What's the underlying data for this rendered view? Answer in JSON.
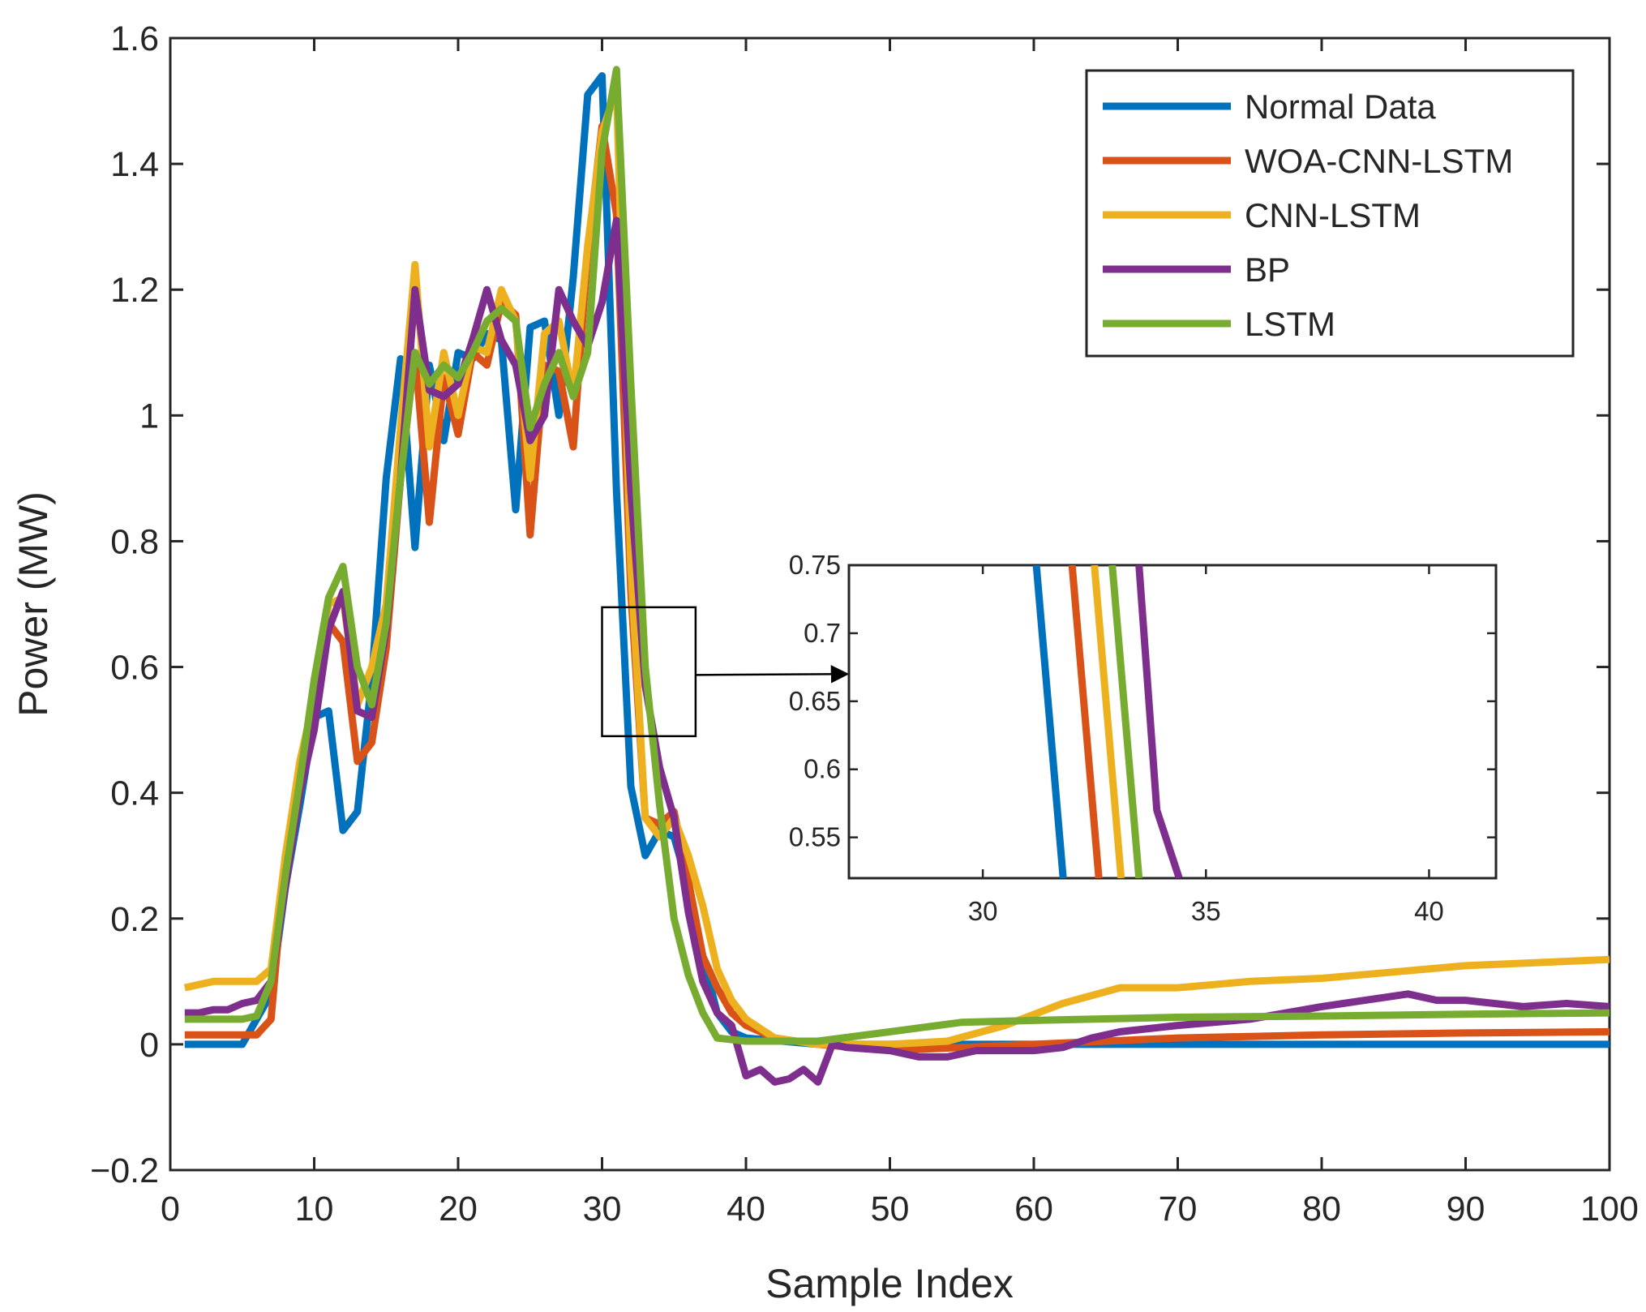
{
  "chart_data": {
    "type": "line",
    "title": "",
    "xlabel": "Sample Index",
    "ylabel": "Power (MW)",
    "xlim": [
      0,
      100
    ],
    "ylim": [
      -0.2,
      1.6
    ],
    "xticks": [
      0,
      10,
      20,
      30,
      40,
      50,
      60,
      70,
      80,
      90,
      100
    ],
    "yticks": [
      -0.2,
      0,
      0.2,
      0.4,
      0.6,
      0.8,
      1,
      1.2,
      1.4,
      1.6
    ],
    "xtick_labels": [
      "0",
      "10",
      "20",
      "30",
      "40",
      "50",
      "60",
      "70",
      "80",
      "90",
      "100"
    ],
    "ytick_labels": [
      "−0.2",
      "0",
      "0.2",
      "0.4",
      "0.6",
      "0.8",
      "1",
      "1.2",
      "1.4",
      "1.6"
    ],
    "grid": false,
    "legend_position": "top-right",
    "series": [
      {
        "name": "Normal Data",
        "color": "#0072BD",
        "x": [
          1,
          2,
          3,
          4,
          5,
          6,
          7,
          8,
          9,
          10,
          11,
          12,
          13,
          14,
          15,
          16,
          17,
          18,
          19,
          20,
          21,
          22,
          23,
          24,
          25,
          26,
          27,
          28,
          29,
          30,
          31,
          32,
          33,
          34,
          35,
          36,
          37,
          38,
          39,
          40,
          45,
          50,
          55,
          60,
          70,
          80,
          90,
          100
        ],
        "y": [
          0,
          0,
          0,
          0,
          0,
          0.04,
          0.08,
          0.25,
          0.38,
          0.52,
          0.53,
          0.34,
          0.37,
          0.58,
          0.9,
          1.09,
          0.79,
          1.08,
          0.96,
          1.1,
          1.09,
          1.13,
          1.12,
          0.85,
          1.14,
          1.15,
          1.0,
          1.22,
          1.51,
          1.54,
          0.88,
          0.41,
          0.3,
          0.34,
          0.33,
          0.25,
          0.14,
          0.05,
          0.02,
          0.01,
          0,
          0,
          0,
          0,
          0,
          0,
          0,
          0
        ]
      },
      {
        "name": "WOA-CNN-LSTM",
        "color": "#D95319",
        "x": [
          1,
          2,
          3,
          4,
          5,
          6,
          7,
          8,
          9,
          10,
          11,
          12,
          13,
          14,
          15,
          16,
          17,
          18,
          19,
          20,
          21,
          22,
          23,
          24,
          25,
          26,
          27,
          28,
          29,
          30,
          31,
          32,
          33,
          34,
          35,
          36,
          37,
          38,
          39,
          40,
          42,
          45,
          50,
          55,
          60,
          65,
          70,
          80,
          90,
          100
        ],
        "y": [
          0.015,
          0.015,
          0.015,
          0.015,
          0.015,
          0.015,
          0.04,
          0.3,
          0.44,
          0.54,
          0.67,
          0.64,
          0.45,
          0.48,
          0.63,
          0.9,
          1.1,
          0.83,
          1.06,
          0.97,
          1.1,
          1.08,
          1.18,
          1.16,
          0.81,
          1.08,
          1.07,
          0.95,
          1.26,
          1.46,
          1.32,
          0.72,
          0.36,
          0.35,
          0.37,
          0.26,
          0.14,
          0.09,
          0.05,
          0.03,
          0.01,
          0,
          -0.01,
          -0.005,
          0,
          0.005,
          0.01,
          0.015,
          0.018,
          0.02
        ]
      },
      {
        "name": "CNN-LSTM",
        "color": "#EDB120",
        "x": [
          1,
          2,
          3,
          4,
          5,
          6,
          7,
          8,
          9,
          10,
          11,
          12,
          13,
          14,
          15,
          16,
          17,
          18,
          19,
          20,
          21,
          22,
          23,
          24,
          25,
          26,
          27,
          28,
          29,
          30,
          31,
          32,
          33,
          34,
          35,
          36,
          37,
          38,
          39,
          40,
          42,
          45,
          50,
          54,
          58,
          62,
          66,
          70,
          75,
          80,
          85,
          90,
          95,
          100
        ],
        "y": [
          0.09,
          0.095,
          0.1,
          0.1,
          0.1,
          0.1,
          0.12,
          0.3,
          0.45,
          0.55,
          0.7,
          0.71,
          0.54,
          0.6,
          0.7,
          0.98,
          1.24,
          0.95,
          1.1,
          1.0,
          1.11,
          1.1,
          1.2,
          1.15,
          0.9,
          1.13,
          1.15,
          1.03,
          1.27,
          1.45,
          1.52,
          0.76,
          0.36,
          0.33,
          0.36,
          0.3,
          0.22,
          0.12,
          0.07,
          0.04,
          0.01,
          0,
          0,
          0.005,
          0.03,
          0.065,
          0.09,
          0.09,
          0.1,
          0.105,
          0.115,
          0.125,
          0.13,
          0.135
        ]
      },
      {
        "name": "BP",
        "color": "#7E2F8E",
        "x": [
          1,
          2,
          3,
          4,
          5,
          6,
          7,
          8,
          9,
          10,
          11,
          12,
          13,
          14,
          15,
          16,
          17,
          18,
          19,
          20,
          21,
          22,
          23,
          24,
          25,
          26,
          27,
          28,
          29,
          30,
          31,
          32,
          33,
          34,
          35,
          36,
          37,
          38,
          39,
          40,
          41,
          42,
          43,
          44,
          45,
          46,
          47,
          50,
          52,
          54,
          56,
          60,
          62,
          64,
          66,
          70,
          75,
          80,
          83,
          86,
          88,
          90,
          94,
          97,
          100
        ],
        "y": [
          0.05,
          0.05,
          0.055,
          0.055,
          0.065,
          0.07,
          0.1,
          0.25,
          0.4,
          0.5,
          0.66,
          0.72,
          0.53,
          0.52,
          0.66,
          0.9,
          1.2,
          1.04,
          1.03,
          1.05,
          1.12,
          1.2,
          1.12,
          1.08,
          0.96,
          1.0,
          1.2,
          1.15,
          1.11,
          1.18,
          1.31,
          0.88,
          0.57,
          0.44,
          0.36,
          0.21,
          0.1,
          0.05,
          0.03,
          -0.05,
          -0.04,
          -0.06,
          -0.055,
          -0.04,
          -0.06,
          0,
          -0.005,
          -0.01,
          -0.02,
          -0.02,
          -0.01,
          -0.01,
          -0.005,
          0.01,
          0.02,
          0.03,
          0.04,
          0.06,
          0.07,
          0.08,
          0.07,
          0.07,
          0.06,
          0.065,
          0.06
        ]
      },
      {
        "name": "LSTM",
        "color": "#77AC30",
        "x": [
          1,
          2,
          3,
          4,
          5,
          6,
          7,
          8,
          9,
          10,
          11,
          12,
          13,
          14,
          15,
          16,
          17,
          18,
          19,
          20,
          21,
          22,
          23,
          24,
          25,
          26,
          27,
          28,
          29,
          30,
          31,
          32,
          33,
          34,
          35,
          36,
          37,
          38,
          40,
          45,
          50,
          55,
          60,
          70,
          80,
          90,
          100
        ],
        "y": [
          0.04,
          0.04,
          0.04,
          0.04,
          0.04,
          0.045,
          0.1,
          0.27,
          0.42,
          0.58,
          0.71,
          0.76,
          0.6,
          0.54,
          0.67,
          0.9,
          1.1,
          1.05,
          1.08,
          1.06,
          1.1,
          1.15,
          1.17,
          1.15,
          0.98,
          1.05,
          1.1,
          1.03,
          1.1,
          1.42,
          1.55,
          1.05,
          0.6,
          0.38,
          0.2,
          0.11,
          0.05,
          0.01,
          0.005,
          0.005,
          0.02,
          0.035,
          0.038,
          0.043,
          0.045,
          0.048,
          0.05
        ]
      }
    ],
    "zoom_box": {
      "x_range": [
        30,
        36.5
      ],
      "y_range": [
        0.49,
        0.695
      ]
    },
    "inset": {
      "xlim": [
        27,
        41.5
      ],
      "ylim": [
        0.52,
        0.75
      ],
      "xticks": [
        30,
        35,
        40
      ],
      "yticks": [
        0.55,
        0.6,
        0.65,
        0.7,
        0.75
      ],
      "xtick_labels": [
        "30",
        "35",
        "40"
      ],
      "ytick_labels": [
        "0.55",
        "0.6",
        "0.65",
        "0.7",
        "0.75"
      ],
      "series": [
        {
          "name": "Normal Data",
          "color": "#0072BD",
          "x": [
            31.2,
            31.8
          ],
          "y": [
            0.75,
            0.52
          ]
        },
        {
          "name": "WOA-CNN-LSTM",
          "color": "#D95319",
          "x": [
            32.0,
            32.6
          ],
          "y": [
            0.75,
            0.52
          ]
        },
        {
          "name": "CNN-LSTM",
          "color": "#EDB120",
          "x": [
            32.5,
            33.1
          ],
          "y": [
            0.75,
            0.52
          ]
        },
        {
          "name": "LSTM",
          "color": "#77AC30",
          "x": [
            32.9,
            33.5
          ],
          "y": [
            0.75,
            0.52
          ]
        },
        {
          "name": "BP",
          "color": "#7E2F8E",
          "x": [
            33.5,
            33.9,
            34.4
          ],
          "y": [
            0.75,
            0.57,
            0.52
          ]
        }
      ]
    }
  }
}
